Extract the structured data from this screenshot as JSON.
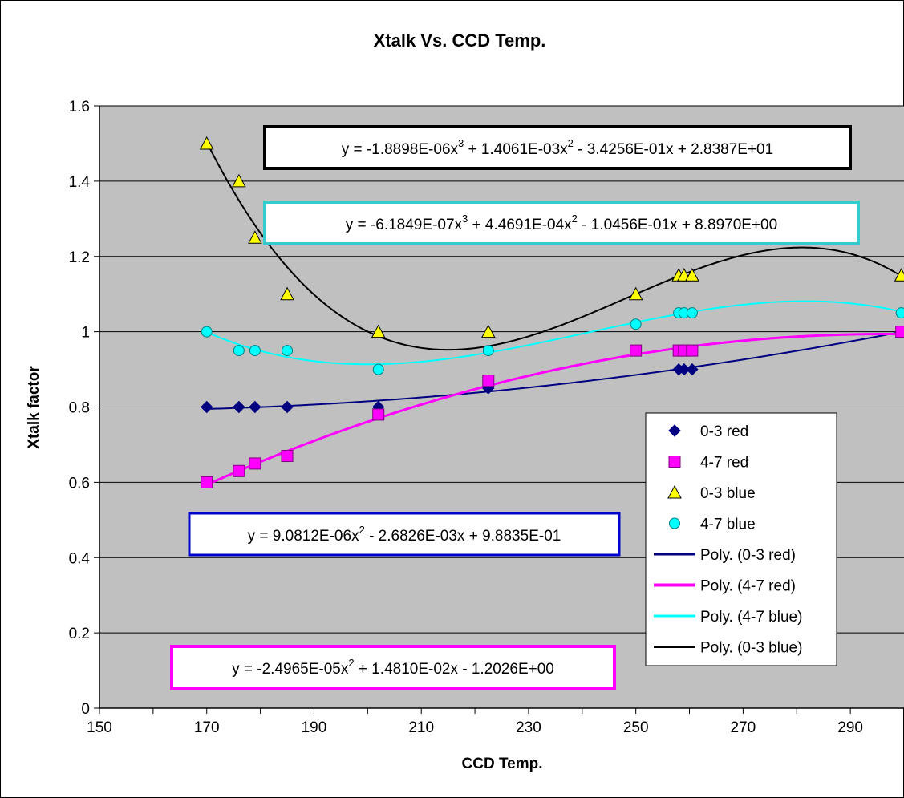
{
  "chart_data": {
    "type": "scatter",
    "title": "Xtalk Vs. CCD Temp.",
    "xlabel": "CCD Temp.",
    "ylabel": "Xtalk factor",
    "xlim": [
      150,
      300
    ],
    "ylim": [
      0,
      1.6
    ],
    "xticks": [
      150,
      170,
      190,
      210,
      230,
      250,
      270,
      290
    ],
    "yticks": [
      0,
      0.2,
      0.4,
      0.6,
      0.8,
      1,
      1.2,
      1.4,
      1.6
    ],
    "xtick_labels": [
      "150",
      "170",
      "190",
      "210",
      "230",
      "250",
      "270",
      "290"
    ],
    "ytick_labels": [
      "0",
      "0.2",
      "0.4",
      "0.6",
      "0.8",
      "1",
      "1.2",
      "1.4",
      "1.6"
    ],
    "grid": "horizontal",
    "plot_background": "#C0C0C0",
    "legend_position": "right",
    "series": [
      {
        "name": "0-3 red",
        "marker": "diamond",
        "color": "#000080",
        "x": [
          170,
          176,
          179,
          185,
          202,
          222.5,
          258,
          259,
          260.5,
          299.5
        ],
        "y": [
          0.8,
          0.8,
          0.8,
          0.8,
          0.8,
          0.85,
          0.9,
          0.9,
          0.9,
          1.0
        ]
      },
      {
        "name": "4-7 red",
        "marker": "square",
        "color": "#FF00FF",
        "x": [
          170,
          176,
          179,
          185,
          202,
          222.5,
          250,
          258,
          259,
          260.5,
          299.5
        ],
        "y": [
          0.6,
          0.63,
          0.65,
          0.67,
          0.78,
          0.87,
          0.95,
          0.95,
          0.95,
          0.95,
          1.0
        ]
      },
      {
        "name": "0-3 blue",
        "marker": "triangle",
        "color": "#FFFF00",
        "x": [
          170,
          176,
          179,
          185,
          202,
          222.5,
          250,
          258,
          259,
          260.5,
          299.5
        ],
        "y": [
          1.5,
          1.4,
          1.25,
          1.1,
          1.0,
          1.0,
          1.1,
          1.15,
          1.15,
          1.15,
          1.15
        ]
      },
      {
        "name": "4-7 blue",
        "marker": "circle",
        "color": "#00FFFF",
        "x": [
          170,
          176,
          179,
          185,
          202,
          222.5,
          250,
          258,
          259,
          260.5,
          299.5
        ],
        "y": [
          1.0,
          0.95,
          0.95,
          0.95,
          0.9,
          0.95,
          1.02,
          1.05,
          1.05,
          1.05,
          1.05
        ]
      }
    ],
    "trendlines": [
      {
        "name": "Poly. (0-3 red)",
        "color": "#000080",
        "width": 2,
        "x_range": [
          170,
          300
        ],
        "coefficients": [
          0,
          9.0812e-06,
          -0.0026826,
          0.98835
        ]
      },
      {
        "name": "Poly. (4-7 red)",
        "color": "#FF00FF",
        "width": 3,
        "x_range": [
          170,
          300
        ],
        "coefficients": [
          0,
          -2.4965e-05,
          0.01481,
          -1.2026
        ]
      },
      {
        "name": "Poly. (4-7 blue)",
        "color": "#00FFFF",
        "width": 2,
        "x_range": [
          170,
          300
        ],
        "coefficients": [
          -6.1849e-07,
          0.00044691,
          -0.10456,
          8.897
        ]
      },
      {
        "name": "Poly. (0-3 blue)",
        "color": "#000000",
        "width": 2,
        "x_range": [
          170,
          300
        ],
        "coefficients": [
          -1.8898e-06,
          0.0014061,
          -0.34256,
          28.387
        ]
      }
    ],
    "annotations": [
      {
        "id": "eq-03blue",
        "border": "#000000",
        "parts": [
          [
            "y = -1.8898E-06x",
            "3",
            " + 1.4061E-03x",
            "2",
            " - 3.4256E-01x + 2.8387E+01"
          ]
        ]
      },
      {
        "id": "eq-47blue",
        "border": "#33CCCC",
        "parts": [
          [
            "y = -6.1849E-07x",
            "3",
            " + 4.4691E-04x",
            "2",
            " - 1.0456E-01x + 8.8970E+00"
          ]
        ]
      },
      {
        "id": "eq-03red",
        "border": "#0000CC",
        "parts": [
          [
            "y = 9.0812E-06x",
            "2",
            " - 2.6826E-03x + 9.8835E-01"
          ]
        ]
      },
      {
        "id": "eq-47red",
        "border": "#FF00FF",
        "parts": [
          [
            "y = -2.4965E-05x",
            "2",
            " + 1.4810E-02x - 1.2026E+00"
          ]
        ]
      }
    ]
  }
}
